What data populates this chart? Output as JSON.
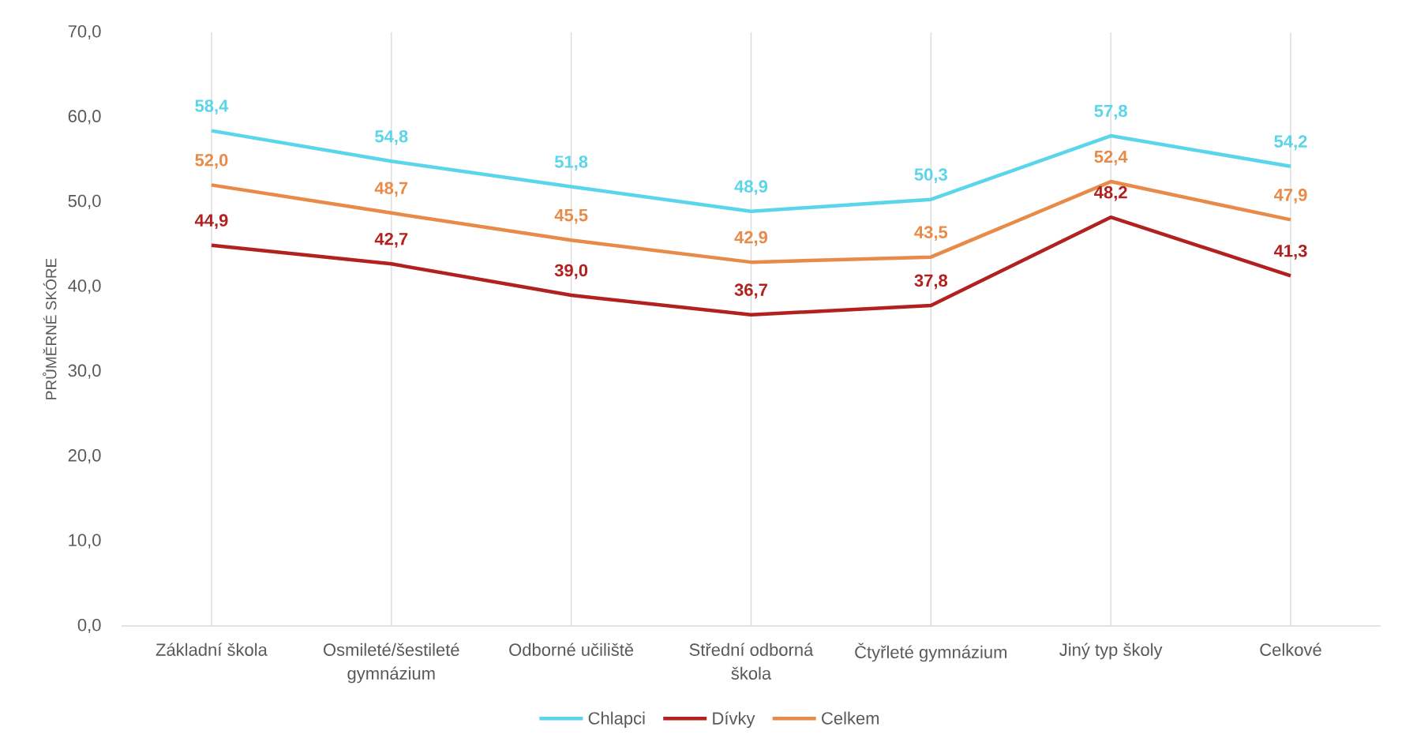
{
  "chart_data": {
    "type": "line",
    "categories": [
      "Základní škola",
      "Osmileté/šestileté gymnázium",
      "Odborné učiliště",
      "Střední odborná škola",
      "Čtyřleté gymnázium",
      "Jiný typ školy",
      "Celkové"
    ],
    "ylabel": "PRŮMĚRNÉ SKÓRE",
    "ylim": [
      0,
      70
    ],
    "yticks": [
      {
        "value": 0,
        "label": "0,0"
      },
      {
        "value": 10,
        "label": "10,0"
      },
      {
        "value": 20,
        "label": "20,0"
      },
      {
        "value": 30,
        "label": "30,0"
      },
      {
        "value": 40,
        "label": "40,0"
      },
      {
        "value": 50,
        "label": "50,0"
      },
      {
        "value": 60,
        "label": "60,0"
      },
      {
        "value": 70,
        "label": "70,0"
      }
    ],
    "grid": "x",
    "legend": "bottom",
    "marker": "none",
    "line_style": "solid",
    "series": [
      {
        "name": "Chlapci",
        "color": "#5bd5e9",
        "values": [
          58.4,
          54.8,
          51.8,
          48.9,
          50.3,
          57.8,
          54.2
        ],
        "value_labels": [
          "58,4",
          "54,8",
          "51,8",
          "48,9",
          "50,3",
          "57,8",
          "54,2"
        ]
      },
      {
        "name": "Dívky",
        "color": "#b0211f",
        "values": [
          44.9,
          42.7,
          39.0,
          36.7,
          37.8,
          48.2,
          41.3
        ],
        "value_labels": [
          "44,9",
          "42,7",
          "39,0",
          "36,7",
          "37,8",
          "48,2",
          "41,3"
        ]
      },
      {
        "name": "Celkem",
        "color": "#e88a48",
        "values": [
          52.0,
          48.7,
          45.5,
          42.9,
          43.5,
          52.4,
          47.9
        ],
        "value_labels": [
          "52,0",
          "48,7",
          "45,5",
          "42,9",
          "43,5",
          "52,4",
          "47,9"
        ]
      }
    ]
  }
}
